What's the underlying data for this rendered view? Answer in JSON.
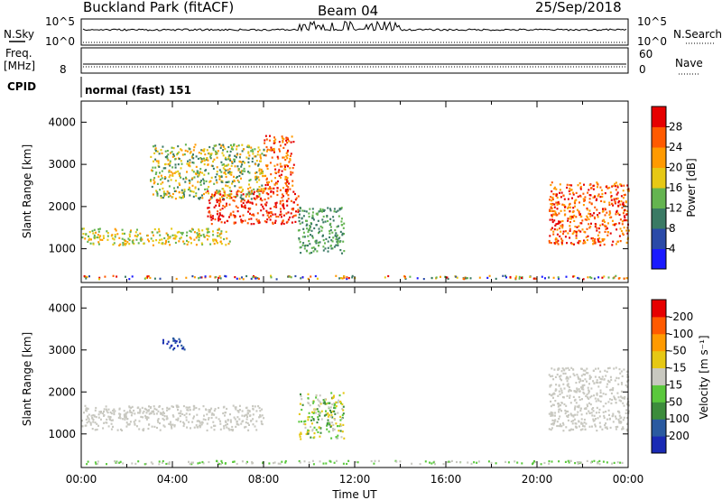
{
  "header": {
    "radar": "Buckland Park (fitACF)",
    "beam": "Beam 04",
    "date": "25/Sep/2018"
  },
  "noise_panel": {
    "left_label": "N.Sky",
    "right_label": "N.Search",
    "ticks_left": [
      "10^5",
      "10^0"
    ],
    "ticks_right": [
      "10^5",
      "10^0"
    ]
  },
  "freq_panel": {
    "left_label_line1": "Freq.",
    "left_label_line2": "[MHz]",
    "left_tick": "8",
    "right_ticks": [
      "60",
      "0"
    ],
    "right_label": "Nave"
  },
  "cpid_panel": {
    "label": "CPID",
    "text": "normal (fast) 151"
  },
  "chart_data": [
    {
      "type": "heatmap",
      "name": "power",
      "ylabel": "Slant Range [km]",
      "yticks": [
        1000,
        2000,
        3000,
        4000
      ],
      "ylim": [
        200,
        4500
      ],
      "xlim": [
        0,
        24
      ],
      "colorbar": {
        "label": "Power [dB]",
        "ticks": [
          4,
          8,
          12,
          16,
          20,
          24,
          28
        ],
        "range": [
          0,
          32
        ],
        "colors": [
          "#1a1aff",
          "#2a4aa8",
          "#3a7a64",
          "#64b450",
          "#e6c814",
          "#ff9a00",
          "#ff5a00",
          "#e60000"
        ]
      },
      "features": [
        {
          "x": [
            0.0,
            24.0
          ],
          "y": [
            300,
            380
          ],
          "level": "mixed-low"
        },
        {
          "x": [
            0.0,
            6.5
          ],
          "y": [
            1100,
            1500
          ],
          "level": "green-to-orange"
        },
        {
          "x": [
            5.5,
            9.5
          ],
          "y": [
            1600,
            2400
          ],
          "level": "red"
        },
        {
          "x": [
            8.0,
            9.3
          ],
          "y": [
            2400,
            3700
          ],
          "level": "orange-red"
        },
        {
          "x": [
            3.0,
            8.0
          ],
          "y": [
            2200,
            3500
          ],
          "level": "green-orange"
        },
        {
          "x": [
            9.5,
            11.5
          ],
          "y": [
            900,
            2000
          ],
          "level": "green"
        },
        {
          "x": [
            20.5,
            24.0
          ],
          "y": [
            1100,
            2600
          ],
          "level": "orange-red"
        }
      ]
    },
    {
      "type": "heatmap",
      "name": "velocity",
      "ylabel": "Slant Range [km]",
      "yticks": [
        1000,
        2000,
        3000,
        4000
      ],
      "ylim": [
        200,
        4500
      ],
      "xlim": [
        0,
        24
      ],
      "xticks": [
        "00:00",
        "04:00",
        "08:00",
        "12:00",
        "16:00",
        "20:00",
        "00:00"
      ],
      "xlabel": "Time UT",
      "colorbar": {
        "label": "Velocity [m s⁻¹]",
        "ticks": [
          "200",
          "100",
          "50",
          "15",
          "-15",
          "-50",
          "-100",
          "-200"
        ],
        "colors": [
          "#1a2ab4",
          "#2a5aa0",
          "#3c8c3c",
          "#5ac83c",
          "#c8c8c0",
          "#e6c814",
          "#ff9a00",
          "#ff5a00",
          "#e60000"
        ]
      },
      "features": [
        {
          "x": [
            0.0,
            24.0
          ],
          "y": [
            300,
            380
          ],
          "level": "green-grey"
        },
        {
          "x": [
            0.0,
            8.0
          ],
          "y": [
            1100,
            1700
          ],
          "level": "grey"
        },
        {
          "x": [
            3.5,
            4.5
          ],
          "y": [
            3000,
            3300
          ],
          "level": "blue"
        },
        {
          "x": [
            9.5,
            11.5
          ],
          "y": [
            900,
            2000
          ],
          "level": "green-orange"
        },
        {
          "x": [
            20.5,
            24.0
          ],
          "y": [
            1100,
            2600
          ],
          "level": "grey"
        }
      ]
    }
  ]
}
